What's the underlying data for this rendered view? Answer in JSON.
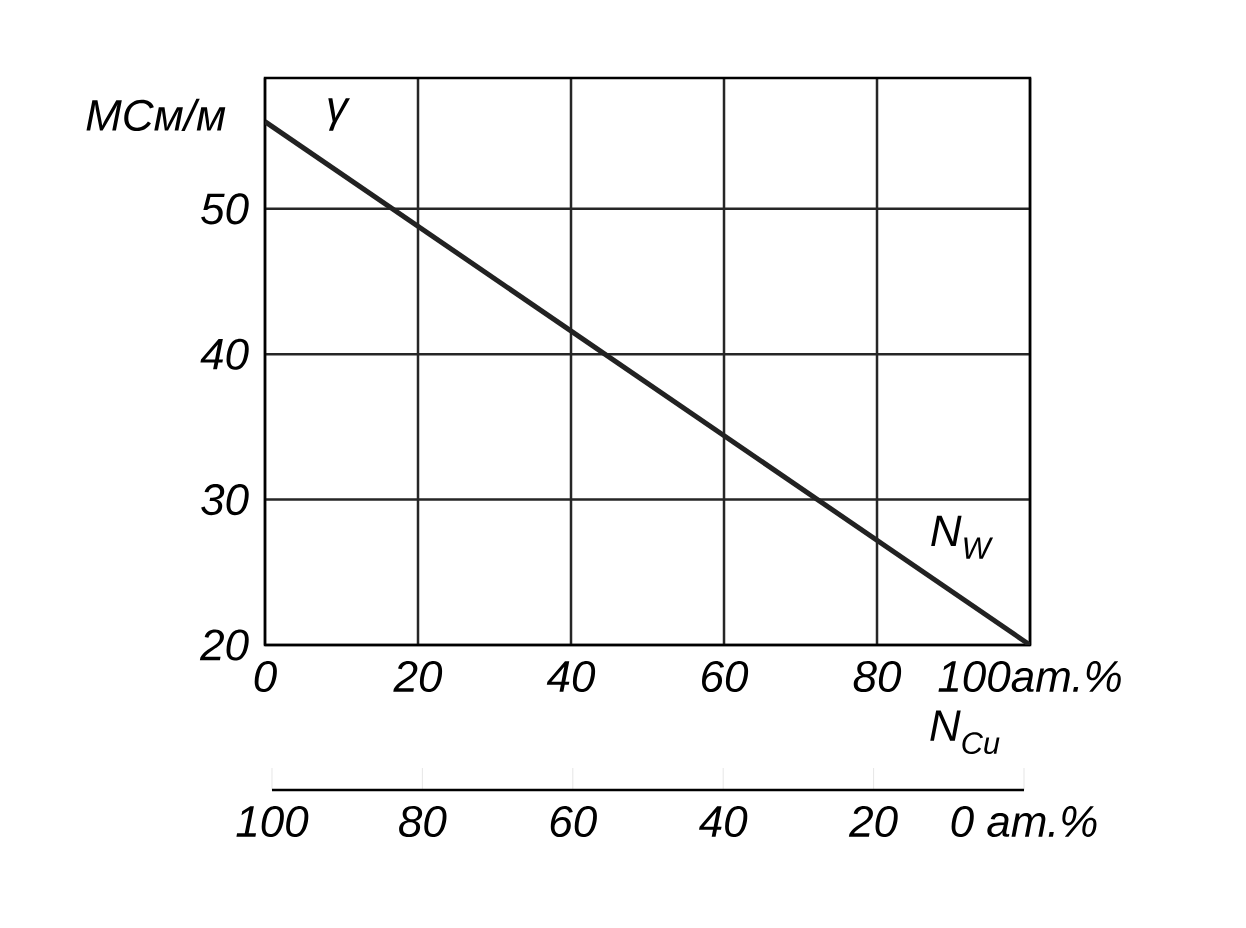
{
  "chart_data": {
    "type": "line",
    "ylabel": "МСм/м",
    "xlabel": "N$_{W}$",
    "x2label": "N$_{Cu}$",
    "x": [
      0,
      100
    ],
    "series": [
      {
        "name": "γ",
        "color": "#222222",
        "values": [
          56,
          20
        ]
      }
    ],
    "xlim": [
      0,
      100
    ],
    "ylim": [
      20,
      59
    ],
    "xticks": [
      0,
      20,
      40,
      60,
      80,
      {
        "value": 100,
        "label": "100ат.%"
      }
    ],
    "yticks": [
      20,
      30,
      40,
      50
    ],
    "x2lim": [
      100,
      0
    ],
    "x2ticks": [
      100,
      80,
      60,
      40,
      20,
      {
        "value": 0,
        "label": "0 ат.%"
      }
    ],
    "grid": true,
    "marker": "none",
    "line_style": "solid"
  }
}
